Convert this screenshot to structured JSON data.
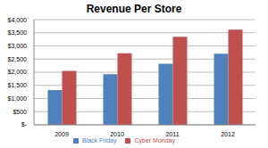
{
  "chart_data": {
    "type": "bar",
    "title": "Revenue Per Store",
    "categories": [
      "2009",
      "2010",
      "2011",
      "2012"
    ],
    "series": [
      {
        "name": "Black Friday",
        "color": "#4f81bd",
        "values": [
          1320,
          1920,
          2320,
          2700
        ]
      },
      {
        "name": "Cyber Monday",
        "color": "#c0504d",
        "values": [
          2050,
          2720,
          3350,
          3620
        ]
      }
    ],
    "ylim": [
      0,
      4000
    ],
    "yticks": [
      {
        "value": 0,
        "label": "$-"
      },
      {
        "value": 500,
        "label": "$500"
      },
      {
        "value": 1000,
        "label": "$1,000"
      },
      {
        "value": 1500,
        "label": "$1,500"
      },
      {
        "value": 2000,
        "label": "$2,000"
      },
      {
        "value": 2500,
        "label": "$2,500"
      },
      {
        "value": 3000,
        "label": "$3,000"
      },
      {
        "value": 3500,
        "label": "$3,500"
      },
      {
        "value": 4000,
        "label": "$4,000"
      }
    ],
    "grid": true,
    "legend": "bottom"
  }
}
